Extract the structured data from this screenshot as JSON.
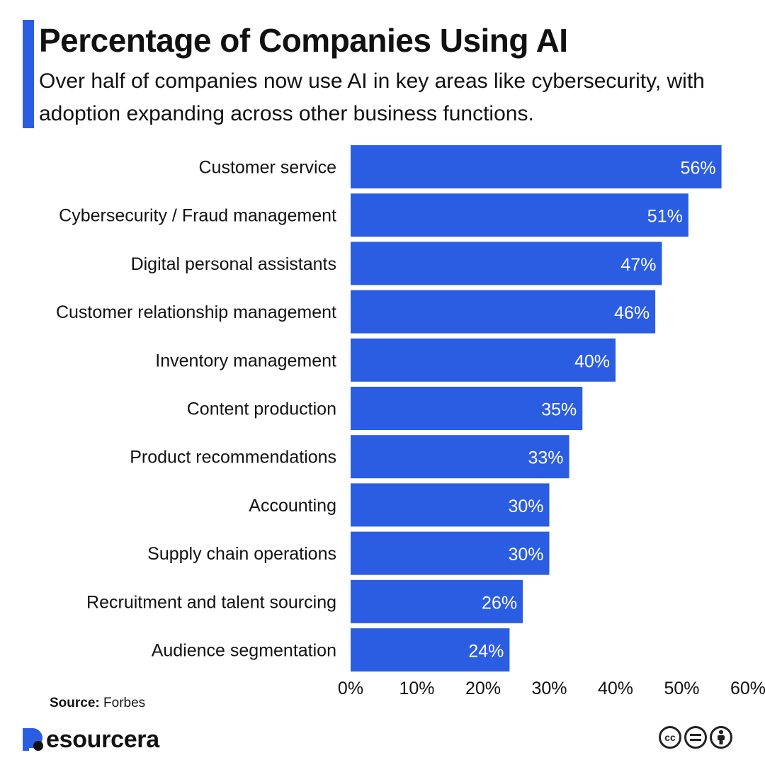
{
  "header": {
    "title": "Percentage of Companies Using AI",
    "subtitle": "Over half of companies now use AI in key areas like cybersecurity, with adoption expanding across other business functions."
  },
  "source": {
    "label": "Source:",
    "value": "Forbes"
  },
  "brand": {
    "name": "esourcera",
    "logo_icon": "resourcera-r-logo-icon"
  },
  "license": {
    "icons": [
      "creative-commons-icon",
      "no-derivatives-icon",
      "attribution-icon"
    ],
    "cc_text": "cc"
  },
  "colors": {
    "bar": "#2b5de2",
    "accent": "#2b5de2",
    "bar_label": "#ffffff"
  },
  "chart_data": {
    "type": "bar",
    "orientation": "horizontal",
    "categories": [
      "Customer service",
      "Cybersecurity / Fraud management",
      "Digital personal assistants",
      "Customer relationship management",
      "Inventory management",
      "Content production",
      "Product recommendations",
      "Accounting",
      "Supply chain operations",
      "Recruitment and talent sourcing",
      "Audience segmentation"
    ],
    "values": [
      56,
      51,
      47,
      46,
      40,
      35,
      33,
      30,
      30,
      26,
      24
    ],
    "value_labels": [
      "56%",
      "51%",
      "47%",
      "46%",
      "40%",
      "35%",
      "33%",
      "30%",
      "30%",
      "26%",
      "24%"
    ],
    "xticks": [
      "0%",
      "10%",
      "20%",
      "30%",
      "40%",
      "50%",
      "60%"
    ],
    "xlim": [
      0,
      60
    ],
    "grid": false,
    "legend": "none"
  }
}
